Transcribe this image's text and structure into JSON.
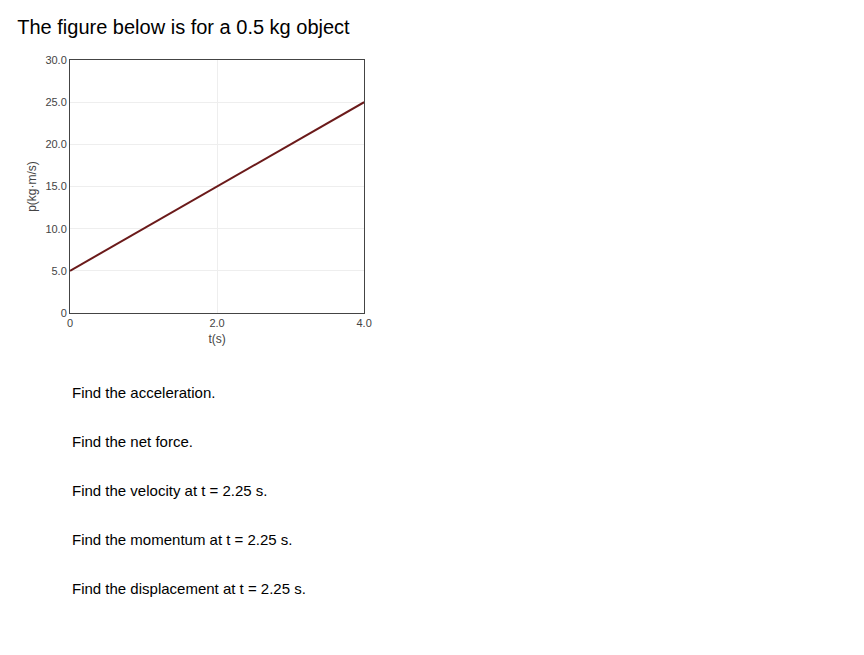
{
  "chart_data": {
    "type": "line",
    "title": "The figure below is for a 0.5 kg object",
    "xlabel": "t(s)",
    "ylabel": "p(kg·m/s)",
    "x": [
      0,
      4.0
    ],
    "values": [
      5.0,
      25.0
    ],
    "color": "#6B1A1A",
    "xlim": [
      0,
      4.0
    ],
    "ylim": [
      0,
      30.0
    ],
    "xticks": [
      0,
      {
        "value": 2.0,
        "label": "2.0"
      },
      {
        "value": 4.0,
        "label": "4.0"
      }
    ],
    "yticks": [
      0,
      {
        "value": 5.0,
        "label": "5.0"
      },
      {
        "value": 10.0,
        "label": "10.0"
      },
      {
        "value": 15.0,
        "label": "15.0"
      },
      {
        "value": 20.0,
        "label": "20.0"
      },
      {
        "value": 25.0,
        "label": "25.0"
      },
      {
        "value": 30.0,
        "label": "30.0"
      }
    ],
    "grid": true,
    "annotations": [
      "Find the acceleration.",
      "Find the net force.",
      "Find the velocity at t = 2.25 s.",
      "Find the momentum at t = 2.25 s.",
      "Find the displacement at t = 2.25 s."
    ]
  }
}
